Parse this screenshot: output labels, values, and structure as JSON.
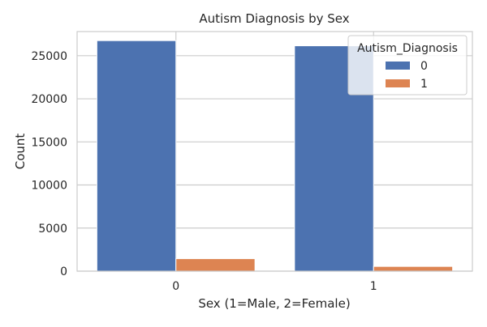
{
  "chart_data": {
    "type": "bar",
    "title": "Autism Diagnosis by Sex",
    "xlabel": "Sex (1=Male, 2=Female)",
    "ylabel": "Count",
    "categories": [
      "0",
      "1"
    ],
    "ylim": [
      0,
      27800
    ],
    "yticks": [
      0,
      5000,
      10000,
      15000,
      20000,
      25000
    ],
    "grid": true,
    "legend": {
      "title": "Autism_Diagnosis",
      "placement": "top-right"
    },
    "series": [
      {
        "name": "0",
        "color": "#4c72b0",
        "values": [
          26750,
          26150
        ]
      },
      {
        "name": "1",
        "color": "#dd8452",
        "values": [
          1450,
          550
        ]
      }
    ]
  }
}
